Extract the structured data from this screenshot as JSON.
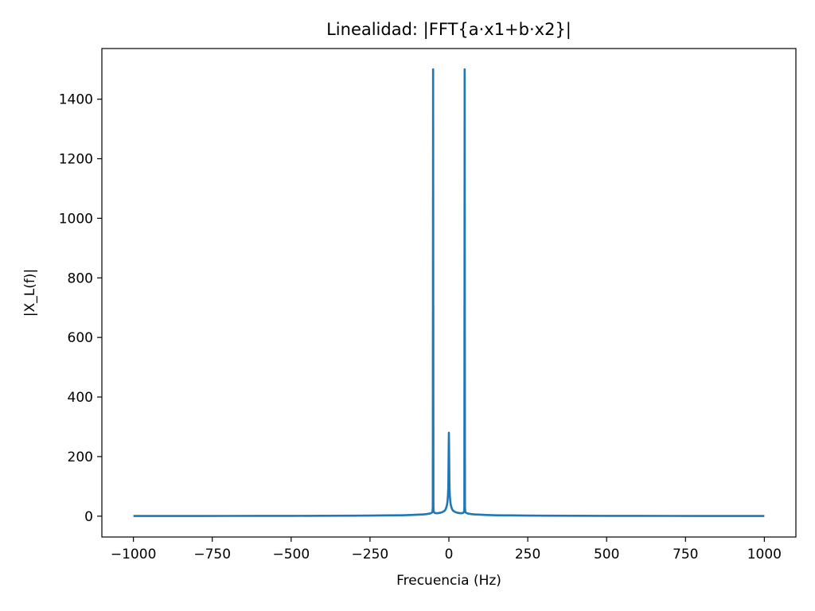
{
  "chart_data": {
    "type": "line",
    "title": "Linealidad: |FFT{a·x1+b·x2}|",
    "xlabel": "Frecuencia (Hz)",
    "ylabel": "|X_L(f)|",
    "xlim": [
      -1100,
      1100
    ],
    "ylim": [
      -70,
      1570
    ],
    "xticks": [
      -1000,
      -750,
      -500,
      -250,
      0,
      250,
      500,
      750,
      1000
    ],
    "xtick_labels": [
      "−1000",
      "−750",
      "−500",
      "−250",
      "0",
      "250",
      "500",
      "750",
      "1000"
    ],
    "yticks": [
      0,
      200,
      400,
      600,
      800,
      1000,
      1200,
      1400
    ],
    "ytick_labels": [
      "0",
      "200",
      "400",
      "600",
      "800",
      "1000",
      "1200",
      "1400"
    ],
    "grid": false,
    "color": "#1f77b4",
    "series": [
      {
        "x": [
          -1000,
          -900,
          -800,
          -700,
          -600,
          -500,
          -400,
          -300,
          -250,
          -200,
          -150,
          -120,
          -100,
          -80,
          -70,
          -60,
          -55,
          -52,
          -51,
          -50,
          -49,
          -48,
          -45,
          -40,
          -35,
          -30,
          -25,
          -20,
          -15,
          -12,
          -10,
          -8,
          -6,
          -5,
          -4,
          -3,
          -2,
          -1.5,
          -1,
          -0.5,
          0,
          0.5,
          1,
          1.5,
          2,
          3,
          4,
          5,
          6,
          8,
          10,
          12,
          15,
          20,
          25,
          30,
          35,
          40,
          45,
          48,
          49,
          50,
          51,
          52,
          55,
          60,
          70,
          80,
          100,
          120,
          150,
          200,
          250,
          300,
          400,
          500,
          600,
          700,
          800,
          900,
          1000
        ],
        "y": [
          0.5,
          0.6,
          0.7,
          0.8,
          0.9,
          1.0,
          1.2,
          1.6,
          2,
          2.5,
          3,
          4,
          5,
          6,
          7,
          9,
          11,
          14,
          30,
          1500,
          30,
          14,
          11,
          10,
          10,
          11,
          12,
          14,
          17,
          20,
          24,
          30,
          38,
          45,
          55,
          70,
          95,
          130,
          190,
          240,
          280,
          240,
          190,
          130,
          95,
          70,
          55,
          45,
          38,
          30,
          24,
          20,
          17,
          14,
          12,
          11,
          10,
          10,
          11,
          14,
          30,
          1500,
          30,
          14,
          11,
          9,
          7,
          6,
          5,
          4,
          3,
          2.5,
          2,
          1.6,
          1.2,
          1.0,
          0.9,
          0.8,
          0.7,
          0.6,
          0.5
        ]
      }
    ]
  }
}
